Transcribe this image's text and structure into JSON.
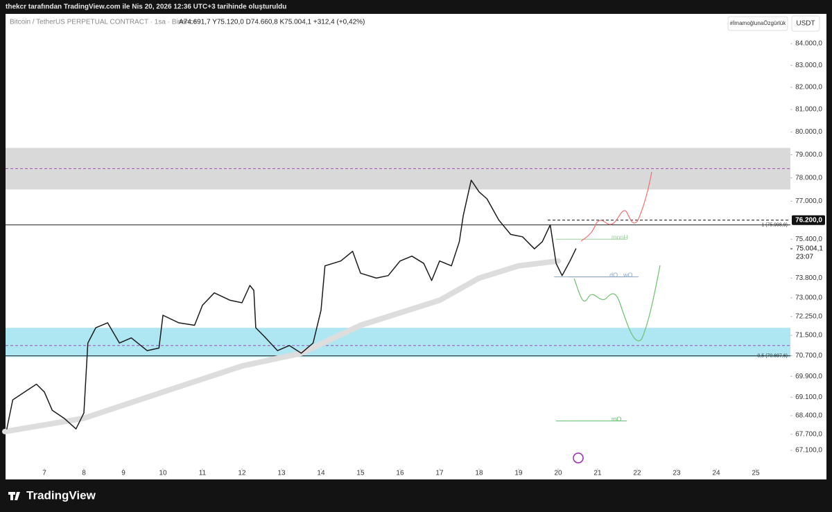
{
  "header": {
    "caption": "thekcr tarafından TradingView.com ile Nis 20, 2026 12:36 UTC+3 tarihinde oluşturuldu",
    "symbol": "Bitcoin / TetherUS PERPETUAL CONTRACT · 1sa · Binance",
    "ohlc": "A74.691,7 Y75.120,0 D74.660,8 K75.004,1 +312,4 (+0,42%)",
    "tag": "#İmamoğlunaÖzgürlük",
    "currency": "USDT",
    "brand": "TradingView"
  },
  "chart_data": {
    "type": "line",
    "log_scale": true,
    "series": [
      {
        "color": "#1a1a1a",
        "width": 1.5,
        "x": [
          6.05,
          6.2,
          6.5,
          6.8,
          7.0,
          7.2,
          7.5,
          7.8,
          8.0,
          8.1,
          8.3,
          8.6,
          8.9,
          9.2,
          9.6,
          9.9,
          10.0,
          10.4,
          10.8,
          11.0,
          11.3,
          11.7,
          12.0,
          12.2,
          12.3,
          12.35,
          12.6,
          12.9,
          13.2,
          13.5,
          13.8,
          14.0,
          14.1,
          14.5,
          14.8,
          15.0,
          15.4,
          15.7,
          16.0,
          16.3,
          16.6,
          16.8,
          17.0,
          17.3,
          17.5,
          17.6,
          17.8,
          18.0,
          18.2,
          18.5,
          18.8,
          19.1,
          19.4,
          19.6,
          19.8,
          19.95,
          20.1,
          20.3,
          20.45
        ],
        "values": [
          67900,
          69000,
          69300,
          69600,
          69300,
          68600,
          68300,
          67900,
          68500,
          71200,
          71800,
          72000,
          71200,
          71400,
          70900,
          71000,
          72300,
          72000,
          71900,
          72700,
          73200,
          72900,
          72800,
          73500,
          73300,
          71800,
          71400,
          70900,
          71100,
          70800,
          71200,
          72500,
          74300,
          74500,
          74900,
          74000,
          73800,
          73900,
          74500,
          74700,
          74400,
          73700,
          74500,
          74300,
          75300,
          76400,
          77900,
          77400,
          77100,
          76200,
          75600,
          75500,
          75000,
          75300,
          76000,
          74400,
          73900,
          74500,
          75000
        ]
      },
      {
        "color": "#dddddd",
        "width": 8,
        "x": [
          6.0,
          8.0,
          10.0,
          12.0,
          13.5,
          15.0,
          17.0,
          18.0,
          19.0,
          20.0
        ],
        "values": [
          67800,
          68300,
          69300,
          70300,
          70800,
          71900,
          72900,
          73800,
          74300,
          74500
        ]
      }
    ],
    "zones": [
      {
        "range": [
          77500,
          79300
        ],
        "mid": 78400,
        "color": "#d9d9d9"
      },
      {
        "range": [
          70650,
          71800
        ],
        "mid": 71100,
        "color": "#aee7f2"
      }
    ],
    "levels": [
      {
        "value": 75998.9,
        "label": "1 (75.998,9)"
      },
      {
        "value": 70697.6,
        "label": "0,5 (70.697,6)"
      }
    ],
    "price_marks": [
      {
        "value": 76200,
        "label": "76.200,0"
      },
      {
        "value": 75004.1,
        "label": "75.004,1"
      }
    ],
    "countdown": "23:07",
    "annotations": [
      {
        "text": "monH",
        "value": 75400,
        "x": 21.35,
        "color": "#9bcf9b"
      },
      {
        "text": "dO",
        "value": 73850,
        "x": 21.3,
        "color": "#8aa6c8"
      },
      {
        "text": "wO",
        "value": 73850,
        "x": 21.65,
        "color": "#8aa6c8"
      },
      {
        "text": "mO",
        "value": 68200,
        "x": 21.35,
        "color": "#5fbf6a"
      }
    ],
    "xlim": [
      6,
      25.86
    ],
    "xticks": [
      7,
      8,
      9,
      10,
      11,
      12,
      13,
      14,
      15,
      16,
      17,
      18,
      19,
      20,
      21,
      22,
      23,
      24,
      25
    ],
    "ylim": [
      66590,
      85330
    ],
    "yticks": [
      {
        "value": 84000,
        "label": "84.000,0"
      },
      {
        "value": 83000,
        "label": "83.000,0"
      },
      {
        "value": 82000,
        "label": "82.000,0"
      },
      {
        "value": 81000,
        "label": "81.000,0"
      },
      {
        "value": 80000,
        "label": "80.000,0"
      },
      {
        "value": 79000,
        "label": "79.000,0"
      },
      {
        "value": 78000,
        "label": "78.000,0"
      },
      {
        "value": 77000,
        "label": "77.000,0"
      },
      {
        "value": 75400,
        "label": "75.400,0"
      },
      {
        "value": 73800,
        "label": "73.800,0"
      },
      {
        "value": 73000,
        "label": "73.000,0"
      },
      {
        "value": 72250,
        "label": "72.250,0"
      },
      {
        "value": 71500,
        "label": "71.500,0"
      },
      {
        "value": 70700,
        "label": "70.700,0"
      },
      {
        "value": 69900,
        "label": "69.900,0"
      },
      {
        "value": 69100,
        "label": "69.100,0"
      },
      {
        "value": 68400,
        "label": "68.400,0"
      },
      {
        "value": 67700,
        "label": "67.700,0"
      },
      {
        "value": 67100,
        "label": "67.100,0"
      }
    ]
  }
}
